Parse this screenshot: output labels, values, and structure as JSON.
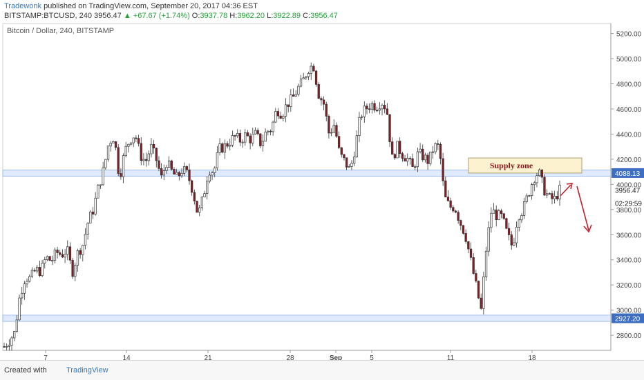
{
  "header": {
    "author": "Tradewonk",
    "published": "published on TradingView.com, September 20, 2017 04:36 EST",
    "symbol": "BITSTAMP:BTCUSD, 240",
    "last": "3956.47",
    "change": "+67.67 (+1.74%)",
    "open_label": "O:",
    "open": "3937.78",
    "high_label": "H:",
    "high": "3962.20",
    "low_label": "L:",
    "low": "3922.89",
    "close_label": "C:",
    "close": "3956.47"
  },
  "footer": {
    "created": "Created with",
    "brand": "TradingView"
  },
  "colors": {
    "up": "#ffffff",
    "down": "#8e1a22",
    "wick": "#333333",
    "zone": "#fdf2cf",
    "band": "#dfeaff",
    "arrow": "#c0202a"
  },
  "chart_data": {
    "type": "candlestick",
    "title": "Bitcoin / Dollar, 240, BITSTAMP",
    "ylim": [
      2680,
      5280
    ],
    "yticks": [
      2800,
      3000,
      3200,
      3400,
      3600,
      3800,
      4000,
      4200,
      4400,
      4600,
      4800,
      5000,
      5200
    ],
    "ytick_labels": [
      "2800.00",
      "3000.00",
      "3200.00",
      "3400.00",
      "3600.00",
      "3800.00",
      "4000.00",
      "4200.00",
      "4400.00",
      "4600.00",
      "4800.00",
      "5000.00",
      "5200.00"
    ],
    "xticks": [
      "7",
      "14",
      "21",
      "28",
      "Sep",
      "5",
      "11",
      "18"
    ],
    "price_series": [
      2710,
      2760,
      2820,
      3120,
      3260,
      3250,
      3320,
      3310,
      3420,
      3390,
      3460,
      3440,
      3480,
      3300,
      3450,
      3520,
      3700,
      3800,
      3980,
      4120,
      4340,
      4380,
      4050,
      4260,
      4360,
      4400,
      4230,
      4180,
      4300,
      4200,
      4050,
      4180,
      4100,
      4050,
      4120,
      4080,
      3950,
      3750,
      3900,
      4120,
      4100,
      4280,
      4300,
      4340,
      4380,
      4350,
      4390,
      4360,
      4400,
      4320,
      4420,
      4440,
      4600,
      4560,
      4640,
      4680,
      4760,
      4820,
      4920,
      4950,
      4720,
      4640,
      4400,
      4480,
      4240,
      4180,
      4110,
      4300,
      4550,
      4600,
      4640,
      4620,
      4660,
      4600,
      4200,
      4300,
      4240,
      4200,
      4120,
      4250,
      4220,
      4180,
      4300,
      4300,
      3900,
      3820,
      3820,
      3700,
      3600,
      3400,
      3200,
      3000,
      3500,
      3800,
      3750,
      3740,
      3600,
      3500,
      3750,
      3800,
      3920,
      4050,
      4100,
      3960,
      3890,
      3880,
      3956
    ],
    "horizontal_bands": [
      {
        "y": [
          4065,
          4115
        ],
        "label": "4088.13"
      },
      {
        "y": [
          2910,
          2960
        ],
        "label": "2927.20"
      }
    ],
    "price_label": "3956.47",
    "countdown_label": "02:29:59",
    "annotations": [
      {
        "text": "Supply zone",
        "y_range": [
          4090,
          4210
        ]
      }
    ]
  }
}
